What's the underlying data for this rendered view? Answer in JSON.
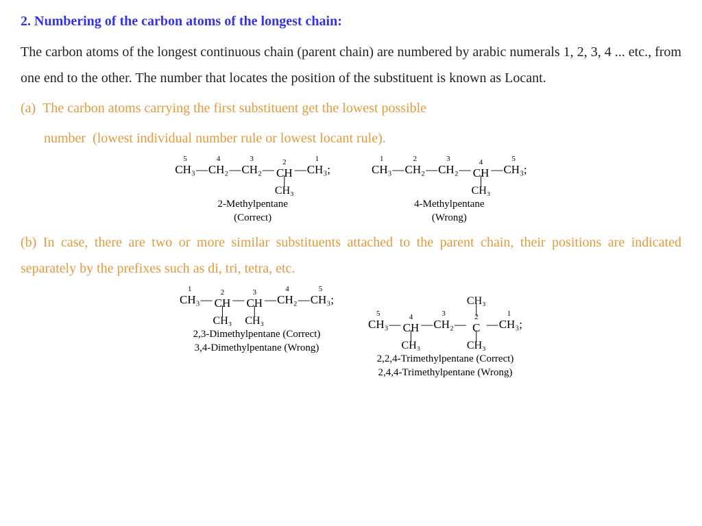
{
  "heading": "2. Numbering of the carbon atoms of the longest chain:",
  "body_p1": "The carbon atoms of the longest continuous chain (parent chain) are numbered by arabic numerals 1, 2, 3, 4 ... etc., from one end to the other. The number that locates the position of the substituent is known as Locant.",
  "rule_a_line1": "(a)  The carbon atoms carrying the first substituent get the lowest possible",
  "rule_a_line2": "number  (lowest individual number rule or lowest locant rule).",
  "rule_b": "(b) In case, there are two or more similar substituents attached to the parent chain, their positions are indicated separately by the prefixes such as di, tri, tetra, etc.",
  "mol1": {
    "nums": [
      "5",
      "4",
      "3",
      "2",
      "1"
    ],
    "syms": [
      "CH₃",
      "CH₂",
      "CH₂",
      "CH",
      "CH₃"
    ],
    "sub_at": 3,
    "sub": "CH₃",
    "name": "2-Methylpentane",
    "verdict": "(Correct)"
  },
  "mol2": {
    "nums": [
      "1",
      "2",
      "3",
      "4",
      "5"
    ],
    "syms": [
      "CH₃",
      "CH₂",
      "CH₂",
      "CH",
      "CH₃"
    ],
    "sub_at": 3,
    "sub": "CH₃",
    "name": "4-Methylpentane",
    "verdict": "(Wrong)"
  },
  "mol3": {
    "nums": [
      "1",
      "2",
      "3",
      "4",
      "5"
    ],
    "syms": [
      "CH₃",
      "CH",
      "CH",
      "CH₂",
      "CH₃"
    ],
    "subs": [
      {
        "at": 1,
        "t": "CH₃"
      },
      {
        "at": 2,
        "t": "CH₃"
      }
    ],
    "name1": "2,3-Dimethylpentane (Correct)",
    "name2": "3,4-Dimethylpentane (Wrong)"
  },
  "mol4": {
    "nums": [
      "5",
      "4",
      "3",
      "2",
      "1"
    ],
    "syms": [
      "CH₃",
      "CH",
      "CH₂",
      "C",
      "CH₃"
    ],
    "top": {
      "at": 3,
      "t": "CH₃"
    },
    "subs": [
      {
        "at": 1,
        "t": "CH₃"
      },
      {
        "at": 3,
        "t": "CH₃"
      }
    ],
    "name1": "2,2,4-Trimethylpentane (Correct)",
    "name2": "2,4,4-Trimethylpentane (Wrong)"
  },
  "colors": {
    "heading": "#3333ee",
    "rule": "#e29a3f",
    "text": "#222222",
    "bg": "#ffffff"
  }
}
